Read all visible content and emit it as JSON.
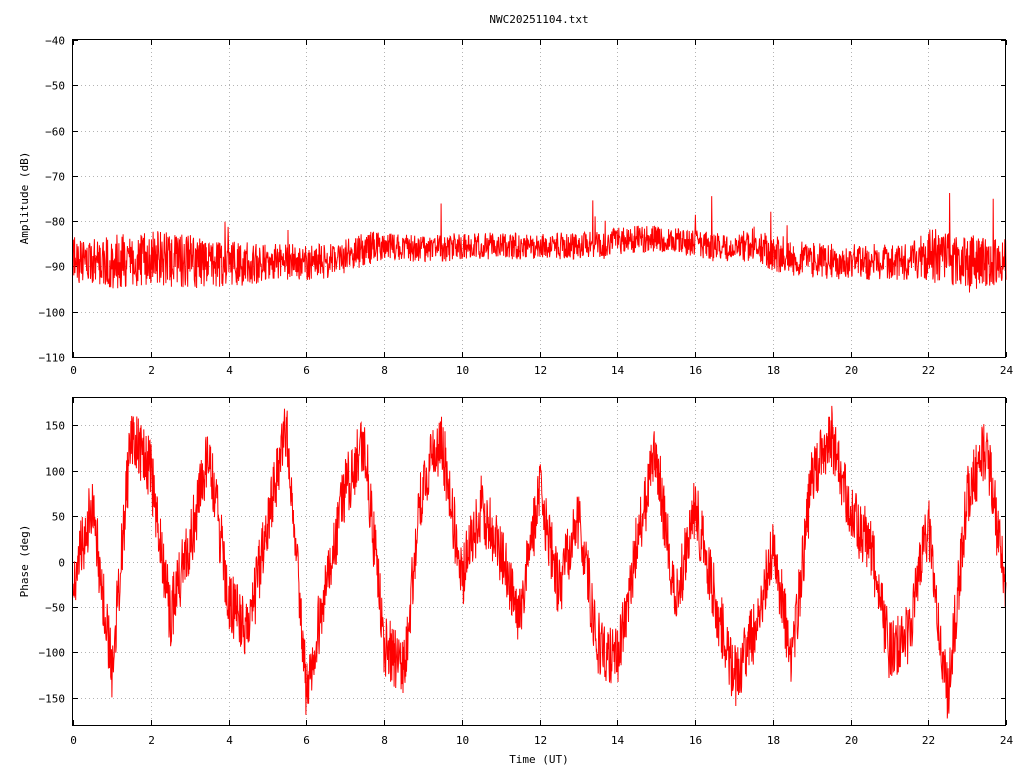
{
  "title": "NWC20251104.txt",
  "colors": {
    "series": "#ff0000",
    "axis": "#000000",
    "grid": "#b4b4b4",
    "background": "#ffffff"
  },
  "chart_data": [
    {
      "type": "line",
      "title": "NWC20251104.txt",
      "xlabel": "",
      "ylabel": "Amplitude (dB)",
      "xlim": [
        0,
        24
      ],
      "ylim": [
        -110,
        -40
      ],
      "xticks": [
        0,
        2,
        4,
        6,
        8,
        10,
        12,
        14,
        16,
        18,
        20,
        22,
        24
      ],
      "yticks": [
        -40,
        -50,
        -60,
        -70,
        -80,
        -90,
        -100,
        -110
      ],
      "grid": true,
      "legend": "none",
      "series": [
        {
          "color": "#ff0000",
          "x": [
            0,
            0.5,
            1,
            1.5,
            2,
            2.5,
            3,
            3.5,
            4,
            4.5,
            5,
            5.5,
            6,
            6.5,
            7,
            7.5,
            8,
            8.5,
            9,
            9.5,
            10,
            10.5,
            11,
            11.5,
            12,
            12.5,
            13,
            13.5,
            14,
            14.5,
            15,
            15.5,
            16,
            16.5,
            17,
            17.5,
            18,
            18.5,
            19,
            19.5,
            20,
            20.5,
            21,
            21.5,
            22,
            22.5,
            23,
            23.5,
            24
          ],
          "y": [
            -88.5,
            -89,
            -89,
            -88.5,
            -88,
            -88.5,
            -89,
            -89.5,
            -89.5,
            -89.5,
            -89,
            -89,
            -89,
            -89,
            -88,
            -86,
            -85.5,
            -86,
            -86,
            -86,
            -85.5,
            -85.5,
            -85.5,
            -85.5,
            -85.5,
            -85.5,
            -85.5,
            -85,
            -84.5,
            -84,
            -84,
            -84.5,
            -85,
            -85.5,
            -86,
            -85,
            -87,
            -88,
            -88.5,
            -89,
            -89,
            -89,
            -89,
            -89,
            -87.5,
            -88,
            -89,
            -89,
            -89
          ],
          "spread": [
            5,
            5,
            6,
            6,
            6,
            6,
            6,
            5,
            5,
            5,
            4,
            4,
            4,
            4,
            4,
            4,
            3,
            3,
            3,
            3,
            3,
            3,
            3,
            3,
            3,
            3,
            3,
            3,
            3,
            3,
            3,
            3,
            3,
            3,
            3,
            4,
            4,
            4,
            4,
            4,
            4,
            4,
            4,
            4,
            6,
            6,
            6,
            6,
            5
          ]
        }
      ]
    },
    {
      "type": "line",
      "xlabel": "Time (UT)",
      "ylabel": "Phase (deg)",
      "xlim": [
        0,
        24
      ],
      "ylim": [
        -180,
        180
      ],
      "xticks": [
        0,
        2,
        4,
        6,
        8,
        10,
        12,
        14,
        16,
        18,
        20,
        22,
        24
      ],
      "yticks": [
        150,
        100,
        50,
        0,
        -50,
        -100,
        -150
      ],
      "grid": true,
      "legend": "none",
      "series": [
        {
          "color": "#ff0000",
          "x": [
            0,
            0.5,
            1,
            1.5,
            2,
            2.5,
            3,
            3.5,
            4,
            4.5,
            5,
            5.5,
            6,
            6.5,
            7,
            7.5,
            8,
            8.5,
            9,
            9.5,
            10,
            10.5,
            11,
            11.5,
            12,
            12.5,
            13,
            13.5,
            14,
            14.5,
            15,
            15.5,
            16,
            16.5,
            17,
            17.5,
            18,
            18.5,
            19,
            19.5,
            20,
            20.5,
            21,
            21.5,
            22,
            22.5,
            23,
            23.5,
            24
          ],
          "y": [
            -20,
            60,
            -120,
            140,
            100,
            -60,
            20,
            120,
            -40,
            -80,
            40,
            150,
            -140,
            -30,
            80,
            130,
            -90,
            -120,
            90,
            130,
            -20,
            60,
            10,
            -60,
            80,
            -30,
            50,
            -90,
            -110,
            20,
            120,
            -50,
            60,
            -40,
            -130,
            -80,
            20,
            -110,
            90,
            140,
            50,
            20,
            -100,
            -80,
            40,
            -150,
            70,
            130,
            -40
          ]
        }
      ]
    }
  ]
}
